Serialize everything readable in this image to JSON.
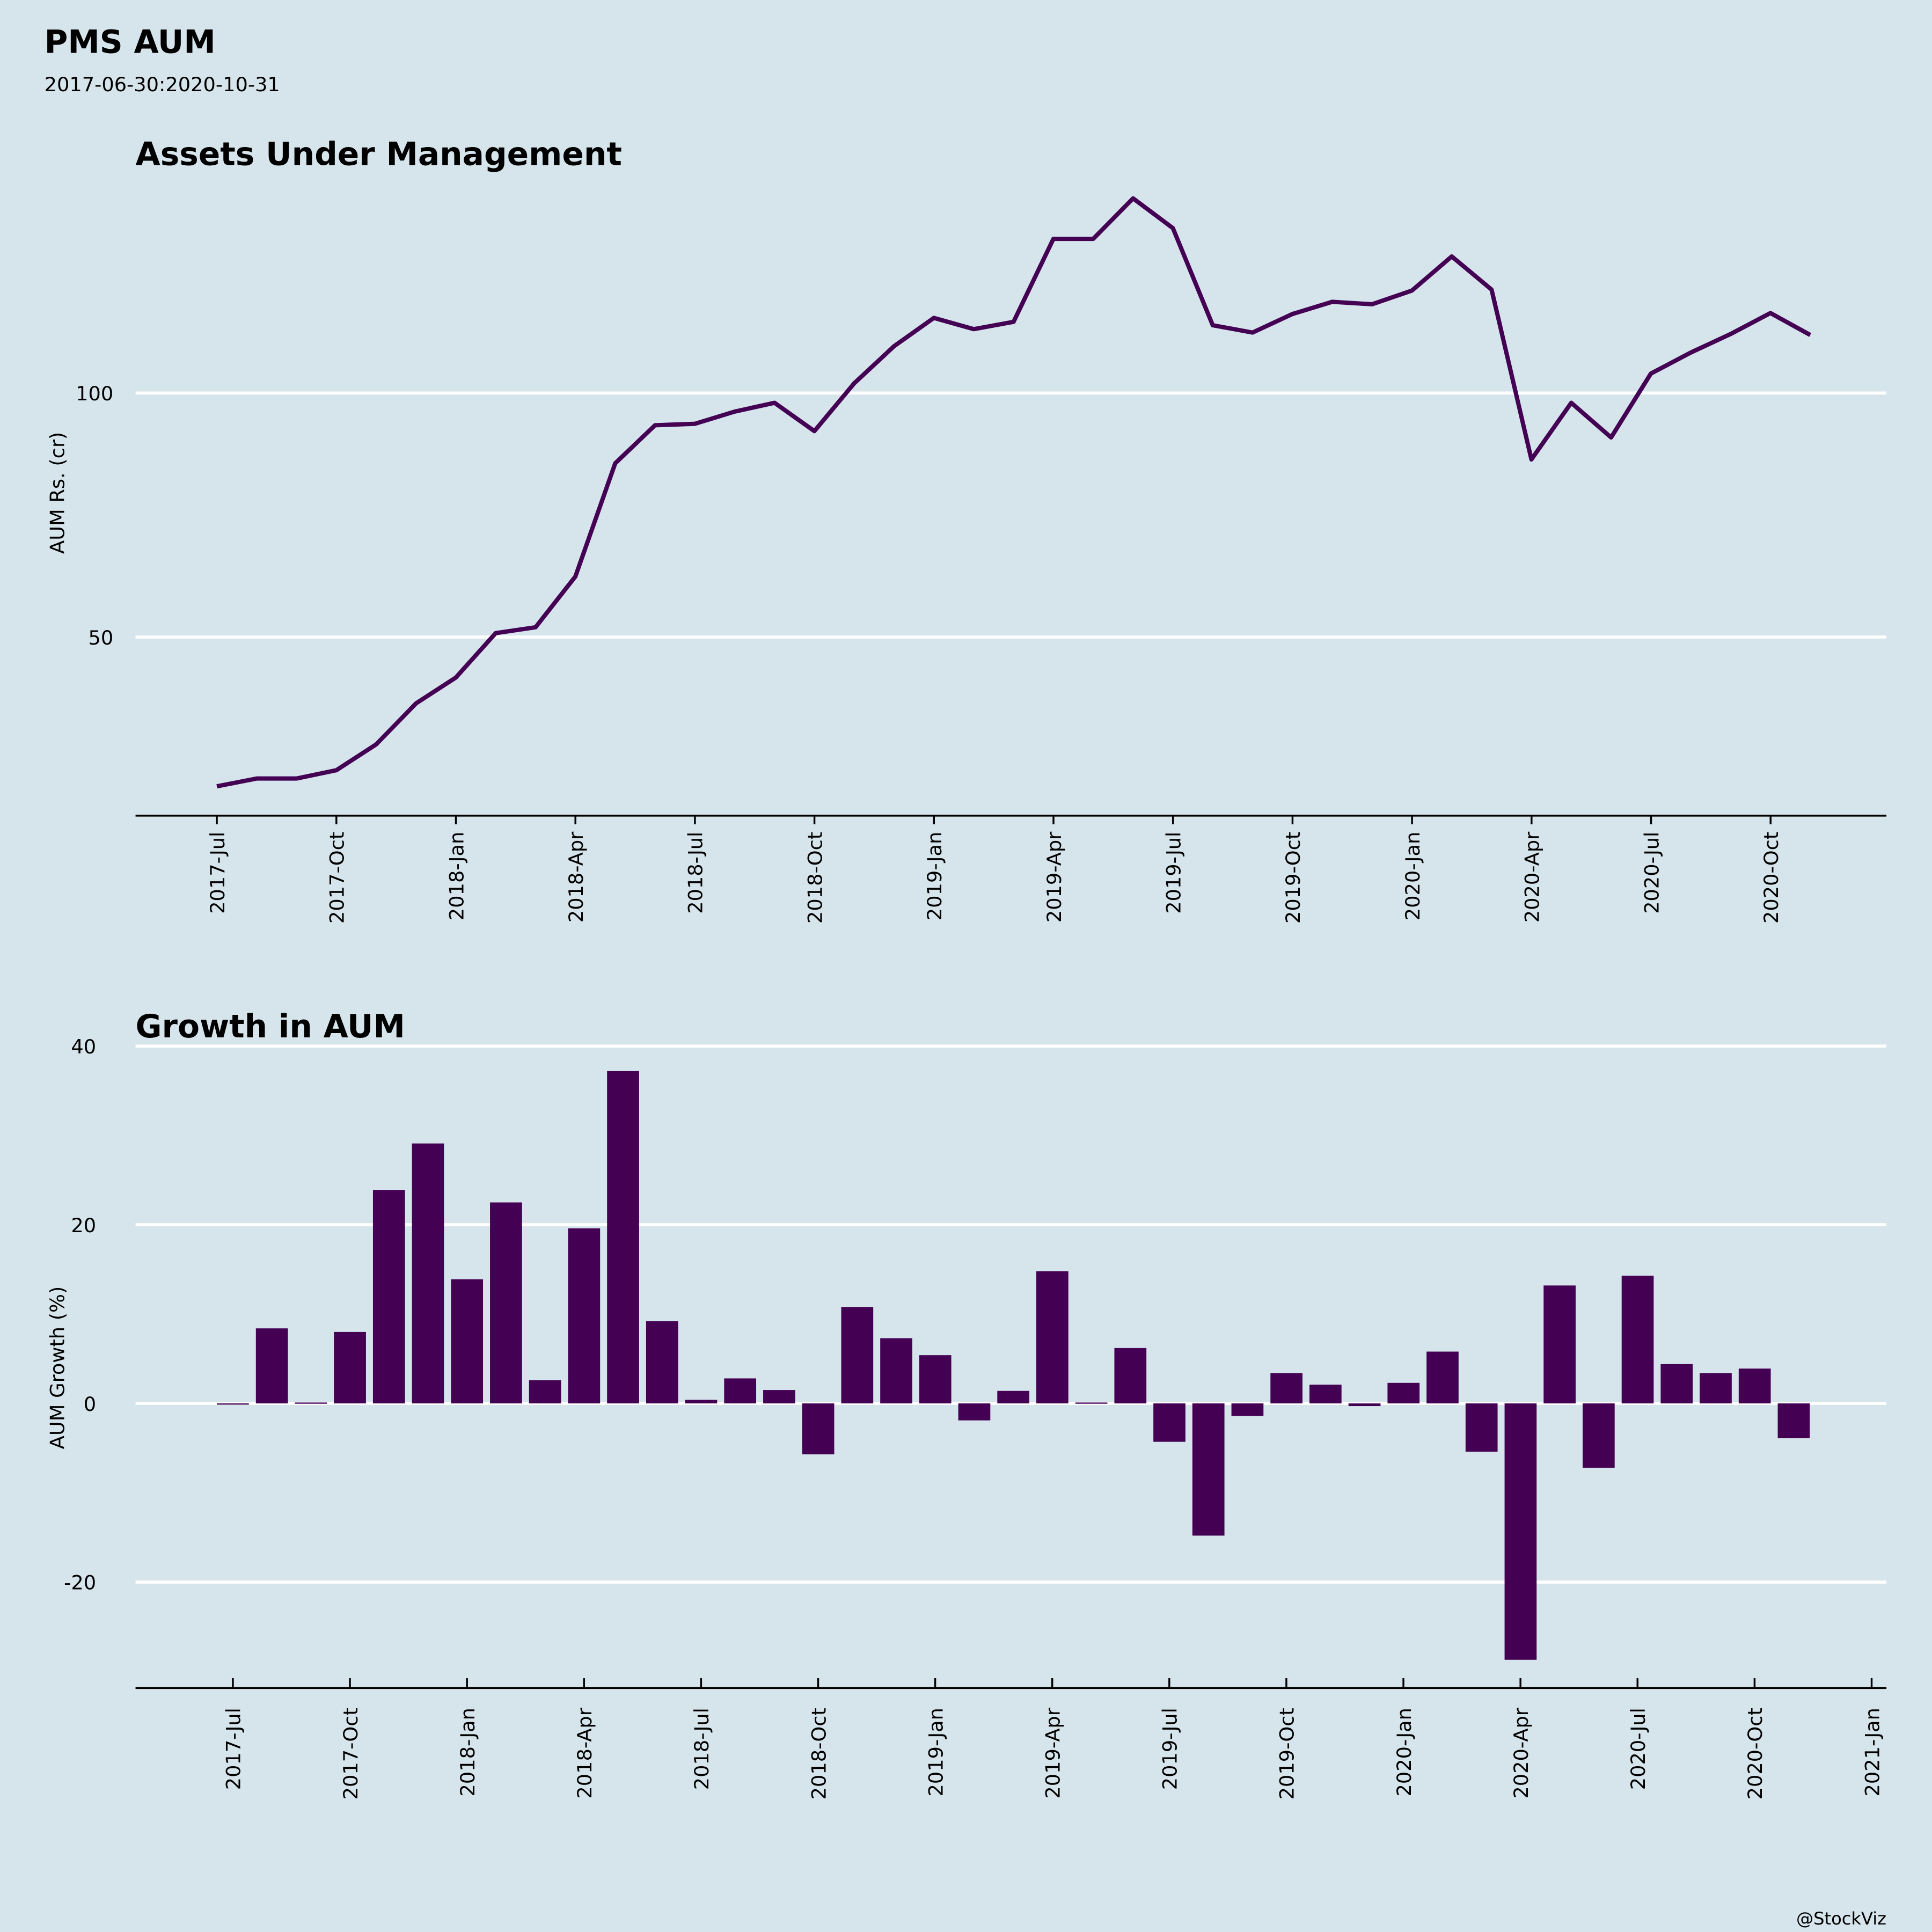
{
  "header": {
    "title": "PMS AUM",
    "subtitle": "2017-06-30:2020-10-31",
    "credit": "@StockViz"
  },
  "colors": {
    "background": "#d6e4eb",
    "series": "#440154",
    "grid": "#ffffff",
    "axis": "#000000"
  },
  "chart_data": [
    {
      "type": "line",
      "title": "Assets Under Management",
      "xlabel": "",
      "ylabel": "AUM Rs. (cr)",
      "ylim": [
        13.5,
        145
      ],
      "yticks": [
        50,
        100
      ],
      "ytick_labels": [
        "50",
        "100"
      ],
      "xtick_labels": [
        "2017-Jul",
        "2017-Oct",
        "2018-Jan",
        "2018-Apr",
        "2018-Jul",
        "2018-Oct",
        "2019-Jan",
        "2019-Apr",
        "2019-Jul",
        "2019-Oct",
        "2020-Jan",
        "2020-Apr",
        "2020-Jul",
        "2020-Oct"
      ],
      "grid": "horizontal",
      "x_start": "2017-06-30",
      "values": [
        19.4,
        21.0,
        21.0,
        22.7,
        28.0,
        36.4,
        41.7,
        50.8,
        52.0,
        62.4,
        85.6,
        93.4,
        93.7,
        96.2,
        98.0,
        92.2,
        102.0,
        109.6,
        115.4,
        113.1,
        114.6,
        131.6,
        131.6,
        139.9,
        133.8,
        113.9,
        112.4,
        116.2,
        118.7,
        118.2,
        121.0,
        128.0,
        121.2,
        86.4,
        98.0,
        90.9,
        104.0,
        108.3,
        112.1,
        116.4,
        111.9
      ]
    },
    {
      "type": "bar",
      "title": "Growth in AUM",
      "xlabel": "",
      "ylabel": "AUM Growth (%)",
      "ylim": [
        -31.5,
        41
      ],
      "yticks": [
        -20,
        0,
        20,
        40
      ],
      "ytick_labels": [
        "-20",
        "0",
        "20",
        "40"
      ],
      "xtick_labels": [
        "2017-Jul",
        "2017-Oct",
        "2018-Jan",
        "2018-Apr",
        "2018-Jul",
        "2018-Oct",
        "2019-Jan",
        "2019-Apr",
        "2019-Jul",
        "2019-Oct",
        "2020-Jan",
        "2020-Apr",
        "2020-Jul",
        "2020-Oct",
        "2021-Jan"
      ],
      "grid": "horizontal",
      "values": [
        0,
        8.4,
        0.1,
        8.0,
        23.9,
        29.1,
        13.9,
        22.5,
        2.6,
        19.6,
        37.2,
        9.2,
        0.4,
        2.8,
        1.5,
        -5.7,
        10.8,
        7.3,
        5.4,
        -1.9,
        1.4,
        14.8,
        0.1,
        6.2,
        -4.3,
        -14.8,
        -1.4,
        3.4,
        2.1,
        -0.3,
        2.3,
        5.8,
        -5.4,
        -28.7,
        13.2,
        -7.2,
        14.3,
        4.4,
        3.4,
        3.9,
        -3.9
      ]
    }
  ]
}
